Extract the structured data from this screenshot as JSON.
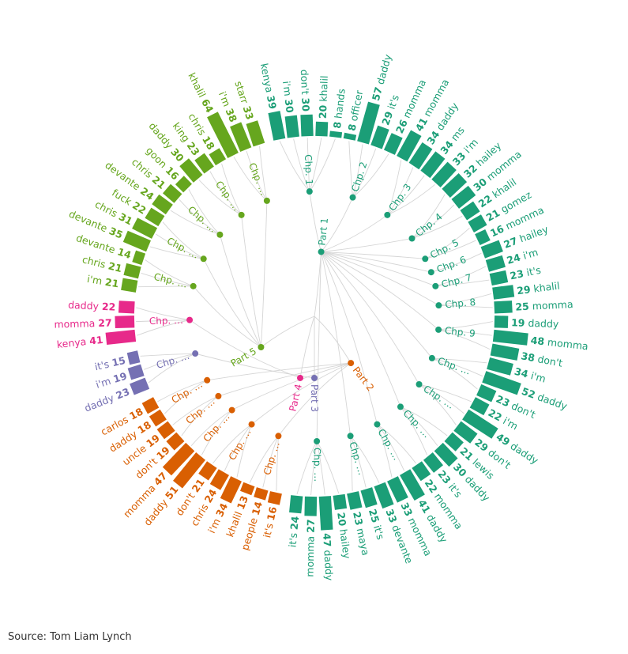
{
  "source": "Source: Tom Liam Lynch",
  "colors": {
    "part1": "#1b9e77",
    "part2": "#d95f02",
    "part3": "#7570b3",
    "part4": "#e7298a",
    "part5": "#66a61e",
    "link": "#d5d5d5"
  },
  "chart_data": {
    "type": "bar",
    "title": "",
    "xlabel": "",
    "ylabel": "",
    "root_label": "",
    "parts": [
      {
        "label": "Part 1",
        "color": "#1b9e77",
        "chapters": [
          {
            "label": "Chp. 1",
            "words": [
              {
                "word": "kenya",
                "count": 39
              },
              {
                "word": "i'm",
                "count": 30
              },
              {
                "word": "don't",
                "count": 30
              },
              {
                "word": "khalil",
                "count": 20
              },
              {
                "word": "hands",
                "count": 8
              }
            ]
          },
          {
            "label": "Chp. 2",
            "words": [
              {
                "word": "officer",
                "count": 8
              },
              {
                "word": "daddy",
                "count": 57
              },
              {
                "word": "it's",
                "count": 29
              },
              {
                "word": "momma",
                "count": 26
              }
            ]
          },
          {
            "label": "Chp. 3",
            "words": [
              {
                "word": "momma",
                "count": 41
              },
              {
                "word": "daddy",
                "count": 34
              },
              {
                "word": "ms",
                "count": 34
              },
              {
                "word": "i'm",
                "count": 33
              }
            ]
          },
          {
            "label": "Chp. 4",
            "words": [
              {
                "word": "hailey",
                "count": 32
              },
              {
                "word": "momma",
                "count": 30
              },
              {
                "word": "khalil",
                "count": 22
              }
            ]
          },
          {
            "label": "Chp. 5",
            "words": [
              {
                "word": "gomez",
                "count": 21
              },
              {
                "word": "momma",
                "count": 16
              }
            ]
          },
          {
            "label": "Chp. 6",
            "words": [
              {
                "word": "hailey",
                "count": 27
              }
            ]
          },
          {
            "label": "Chp. 7",
            "words": [
              {
                "word": "i'm",
                "count": 24
              },
              {
                "word": "it's",
                "count": 23
              }
            ]
          },
          {
            "label": "Chp. 8",
            "words": [
              {
                "word": "khalil",
                "count": 29
              },
              {
                "word": "momma",
                "count": 25
              }
            ]
          },
          {
            "label": "Chp. 9",
            "words": [
              {
                "word": "daddy",
                "count": 19
              },
              {
                "word": "momma",
                "count": 48
              },
              {
                "word": "don't",
                "count": 38
              }
            ]
          },
          {
            "label": "Chp. …",
            "words": [
              {
                "word": "i'm",
                "count": 34
              },
              {
                "word": "daddy",
                "count": 52
              },
              {
                "word": "don't",
                "count": 23
              }
            ]
          },
          {
            "label": "Chp. …",
            "words": [
              {
                "word": "i'm",
                "count": 22
              },
              {
                "word": "daddy",
                "count": 49
              },
              {
                "word": "don't",
                "count": 29
              }
            ]
          },
          {
            "label": "Chp. …",
            "words": [
              {
                "word": "lewis",
                "count": 21
              },
              {
                "word": "daddy",
                "count": 30
              },
              {
                "word": "it's",
                "count": 23
              }
            ]
          },
          {
            "label": "Chp. …",
            "words": [
              {
                "word": "momma",
                "count": 22
              },
              {
                "word": "daddy",
                "count": 41
              },
              {
                "word": "momma",
                "count": 33
              }
            ]
          },
          {
            "label": "Chp. …",
            "words": [
              {
                "word": "devante",
                "count": 33
              },
              {
                "word": "it's",
                "count": 25
              },
              {
                "word": "maya",
                "count": 23
              }
            ]
          },
          {
            "label": "Chp. …",
            "words": [
              {
                "word": "hailey",
                "count": 20
              },
              {
                "word": "daddy",
                "count": 47
              },
              {
                "word": "momma",
                "count": 27
              },
              {
                "word": "it's",
                "count": 24
              }
            ]
          }
        ]
      },
      {
        "label": "Part 2",
        "color": "#d95f02",
        "chapters": [
          {
            "label": "Chp. …",
            "words": [
              {
                "word": "it's",
                "count": 16
              },
              {
                "word": "people",
                "count": 14
              },
              {
                "word": "khalil",
                "count": 13
              }
            ]
          },
          {
            "label": "Chp. …",
            "words": [
              {
                "word": "i'm",
                "count": 34
              },
              {
                "word": "chris",
                "count": 24
              },
              {
                "word": "don't",
                "count": 21
              }
            ]
          },
          {
            "label": "Chp. …",
            "words": [
              {
                "word": "daddy",
                "count": 51
              },
              {
                "word": "momma",
                "count": 47
              }
            ]
          },
          {
            "label": "Chp. …",
            "words": [
              {
                "word": "don't",
                "count": 19
              },
              {
                "word": "uncle",
                "count": 19
              }
            ]
          },
          {
            "label": "Chp. …",
            "words": [
              {
                "word": "daddy",
                "count": 18
              },
              {
                "word": "carlos",
                "count": 18
              }
            ]
          }
        ]
      },
      {
        "label": "Part 3",
        "color": "#7570b3",
        "chapters": [
          {
            "label": "Chp. …",
            "words": [
              {
                "word": "daddy",
                "count": 23
              },
              {
                "word": "i'm",
                "count": 19
              },
              {
                "word": "it's",
                "count": 15
              }
            ]
          }
        ]
      },
      {
        "label": "Part 4",
        "color": "#e7298a",
        "chapters": [
          {
            "label": "Chp. …",
            "words": [
              {
                "word": "kenya",
                "count": 41
              },
              {
                "word": "momma",
                "count": 27
              },
              {
                "word": "daddy",
                "count": 22
              }
            ]
          }
        ]
      },
      {
        "label": "Part 5",
        "color": "#66a61e",
        "chapters": [
          {
            "label": "Chp. …",
            "words": [
              {
                "word": "i'm",
                "count": 21
              },
              {
                "word": "chris",
                "count": 21
              },
              {
                "word": "devante",
                "count": 14
              }
            ]
          },
          {
            "label": "Chp. …",
            "words": [
              {
                "word": "devante",
                "count": 35
              },
              {
                "word": "chris",
                "count": 31
              },
              {
                "word": "fuck",
                "count": 22
              }
            ]
          },
          {
            "label": "Chp. …",
            "words": [
              {
                "word": "devante",
                "count": 24
              },
              {
                "word": "chris",
                "count": 21
              },
              {
                "word": "goon",
                "count": 16
              }
            ]
          },
          {
            "label": "Chp. …",
            "words": [
              {
                "word": "daddy",
                "count": 30
              },
              {
                "word": "king",
                "count": 23
              },
              {
                "word": "chris",
                "count": 18
              }
            ]
          },
          {
            "label": "Chp. …",
            "words": [
              {
                "word": "khalil",
                "count": 64
              },
              {
                "word": "i'm",
                "count": 38
              },
              {
                "word": "starr",
                "count": 33
              }
            ]
          }
        ]
      }
    ]
  }
}
